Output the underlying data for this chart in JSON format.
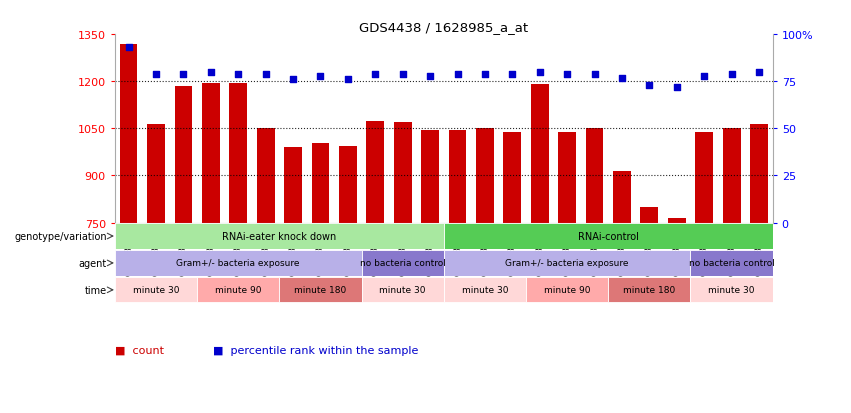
{
  "title": "GDS4438 / 1628985_a_at",
  "samples": [
    "GSM783343",
    "GSM783344",
    "GSM783345",
    "GSM783349",
    "GSM783350",
    "GSM783351",
    "GSM783355",
    "GSM783356",
    "GSM783357",
    "GSM783337",
    "GSM783338",
    "GSM783339",
    "GSM783340",
    "GSM783341",
    "GSM783342",
    "GSM783346",
    "GSM783347",
    "GSM783348",
    "GSM783352",
    "GSM783353",
    "GSM783354",
    "GSM783334",
    "GSM783335",
    "GSM783336"
  ],
  "bar_values": [
    1320,
    1065,
    1185,
    1195,
    1195,
    1050,
    990,
    1005,
    995,
    1075,
    1070,
    1045,
    1045,
    1050,
    1040,
    1190,
    1040,
    1050,
    915,
    800,
    765,
    1040,
    1050,
    1065
  ],
  "percentile_values": [
    93,
    79,
    79,
    80,
    79,
    79,
    76,
    78,
    76,
    79,
    79,
    78,
    79,
    79,
    79,
    80,
    79,
    79,
    77,
    73,
    72,
    78,
    79,
    80
  ],
  "ylim_left": [
    750,
    1350
  ],
  "ylim_right": [
    0,
    100
  ],
  "yticks_left": [
    750,
    900,
    1050,
    1200,
    1350
  ],
  "yticks_right": [
    0,
    25,
    50,
    75,
    100
  ],
  "bar_color": "#cc0000",
  "dot_color": "#0000cc",
  "background_color": "#ffffff",
  "annotation_rows": [
    {
      "label": "genotype/variation",
      "segments": [
        {
          "text": "RNAi-eater knock down",
          "start": 0,
          "end": 12,
          "color": "#a8e8a0"
        },
        {
          "text": "RNAi-control",
          "start": 12,
          "end": 24,
          "color": "#55cc55"
        }
      ]
    },
    {
      "label": "agent",
      "segments": [
        {
          "text": "Gram+/- bacteria exposure",
          "start": 0,
          "end": 9,
          "color": "#b8b0e8"
        },
        {
          "text": "no bacteria control",
          "start": 9,
          "end": 12,
          "color": "#8878cc"
        },
        {
          "text": "Gram+/- bacteria exposure",
          "start": 12,
          "end": 21,
          "color": "#b8b0e8"
        },
        {
          "text": "no bacteria control",
          "start": 21,
          "end": 24,
          "color": "#8878cc"
        }
      ]
    },
    {
      "label": "time",
      "segments": [
        {
          "text": "minute 30",
          "start": 0,
          "end": 3,
          "color": "#ffd8d8"
        },
        {
          "text": "minute 90",
          "start": 3,
          "end": 6,
          "color": "#ffaaaa"
        },
        {
          "text": "minute 180",
          "start": 6,
          "end": 9,
          "color": "#dd7777"
        },
        {
          "text": "minute 30",
          "start": 9,
          "end": 12,
          "color": "#ffd8d8"
        },
        {
          "text": "minute 30",
          "start": 12,
          "end": 15,
          "color": "#ffd8d8"
        },
        {
          "text": "minute 90",
          "start": 15,
          "end": 18,
          "color": "#ffaaaa"
        },
        {
          "text": "minute 180",
          "start": 18,
          "end": 21,
          "color": "#dd7777"
        },
        {
          "text": "minute 30",
          "start": 21,
          "end": 24,
          "color": "#ffd8d8"
        }
      ]
    }
  ],
  "legend_count_color": "#cc0000",
  "legend_pct_color": "#0000cc",
  "legend_count_label": "count",
  "legend_pct_label": "percentile rank within the sample"
}
